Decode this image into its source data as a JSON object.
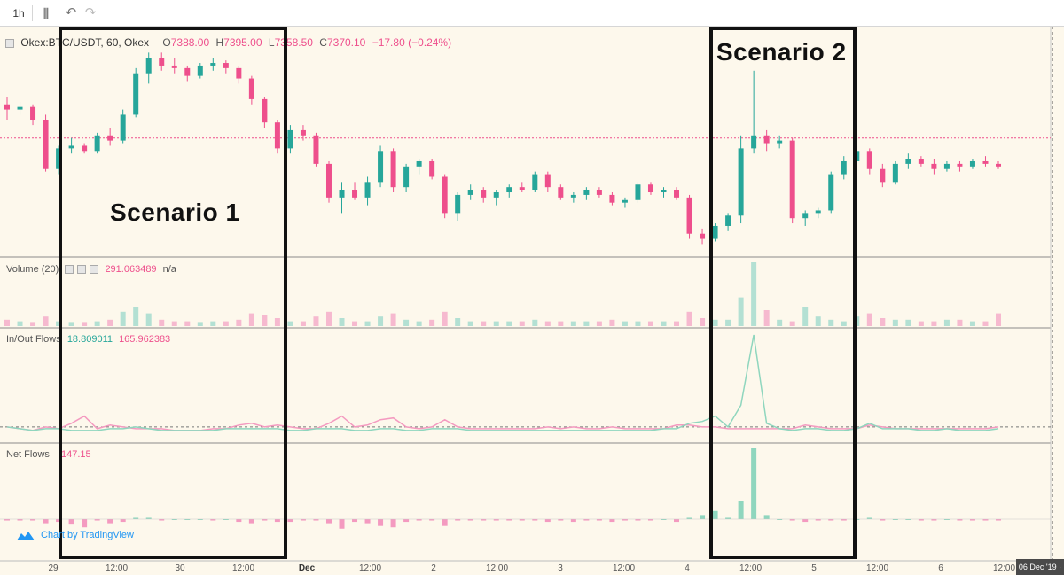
{
  "toolbar": {
    "interval": "1h",
    "candle_icon": "candlestick-icon",
    "undo_icon": "undo-icon",
    "redo_icon": "redo-icon",
    "undo_glyph": "↶",
    "redo_glyph": "↷",
    "candle_glyph": "⫼"
  },
  "header": {
    "symbol": "Okex:BTC/USDT, 60, Okex",
    "open_label": "O",
    "open": "7388.00",
    "high_label": "H",
    "high": "7395.00",
    "low_label": "L",
    "low": "7358.50",
    "close_label": "C",
    "close": "7370.10",
    "change": "−17.80 (−0.24%)"
  },
  "panes": {
    "volume": {
      "label": "Volume (20)",
      "value1": "291.063489",
      "value2": "n/a"
    },
    "flows": {
      "label": "In/Out Flows",
      "value1": "18.809011",
      "value2": "165.962383"
    },
    "net": {
      "label": "Net Flows",
      "value1": "147.15"
    }
  },
  "annotations": {
    "scenario1": "Scenario 1",
    "scenario2": "Scenario 2"
  },
  "watermark": "Chart by TradingView",
  "date_badge": "06 Dec '19 ·",
  "colors": {
    "up": "#26a69a",
    "down": "#ee4f8c",
    "background": "#fdf8ec",
    "up_volume": "#b3e0d3",
    "down_volume": "#f6b9cf"
  },
  "chart_data": {
    "type": "candlestick",
    "x_ticks": [
      "29",
      "12:00",
      "30",
      "12:00",
      "Dec",
      "12:00",
      "2",
      "12:00",
      "3",
      "12:00",
      "4",
      "12:00",
      "5",
      "12:00",
      "6",
      "12:00"
    ],
    "candles": [
      [
        7420,
        7450,
        7360,
        7400
      ],
      [
        7400,
        7430,
        7380,
        7410
      ],
      [
        7410,
        7420,
        7340,
        7360
      ],
      [
        7360,
        7380,
        7160,
        7170
      ],
      [
        7170,
        7260,
        7150,
        7250
      ],
      [
        7250,
        7290,
        7230,
        7260
      ],
      [
        7260,
        7270,
        7230,
        7240
      ],
      [
        7240,
        7310,
        7230,
        7300
      ],
      [
        7300,
        7330,
        7260,
        7280
      ],
      [
        7280,
        7400,
        7270,
        7380
      ],
      [
        7380,
        7560,
        7370,
        7540
      ],
      [
        7540,
        7620,
        7500,
        7600
      ],
      [
        7600,
        7620,
        7550,
        7570
      ],
      [
        7570,
        7600,
        7540,
        7560
      ],
      [
        7560,
        7570,
        7510,
        7530
      ],
      [
        7530,
        7580,
        7520,
        7570
      ],
      [
        7570,
        7600,
        7550,
        7580
      ],
      [
        7580,
        7590,
        7540,
        7560
      ],
      [
        7560,
        7570,
        7500,
        7520
      ],
      [
        7520,
        7530,
        7420,
        7440
      ],
      [
        7440,
        7450,
        7330,
        7350
      ],
      [
        7350,
        7360,
        7230,
        7250
      ],
      [
        7250,
        7340,
        7230,
        7320
      ],
      [
        7320,
        7340,
        7280,
        7300
      ],
      [
        7300,
        7310,
        7180,
        7190
      ],
      [
        7190,
        7200,
        7040,
        7060
      ],
      [
        7060,
        7120,
        7000,
        7090
      ],
      [
        7090,
        7120,
        7050,
        7060
      ],
      [
        7060,
        7140,
        7030,
        7120
      ],
      [
        7120,
        7260,
        7100,
        7240
      ],
      [
        7240,
        7250,
        7080,
        7100
      ],
      [
        7100,
        7190,
        7080,
        7180
      ],
      [
        7180,
        7210,
        7150,
        7200
      ],
      [
        7200,
        7210,
        7130,
        7140
      ],
      [
        7140,
        7150,
        6980,
        7000
      ],
      [
        7000,
        7080,
        6970,
        7070
      ],
      [
        7070,
        7110,
        7050,
        7090
      ],
      [
        7090,
        7100,
        7040,
        7060
      ],
      [
        7060,
        7090,
        7030,
        7080
      ],
      [
        7080,
        7110,
        7060,
        7100
      ],
      [
        7100,
        7120,
        7080,
        7090
      ],
      [
        7090,
        7160,
        7080,
        7150
      ],
      [
        7150,
        7160,
        7080,
        7100
      ],
      [
        7100,
        7110,
        7050,
        7060
      ],
      [
        7060,
        7080,
        7040,
        7070
      ],
      [
        7070,
        7100,
        7050,
        7090
      ],
      [
        7090,
        7100,
        7060,
        7070
      ],
      [
        7070,
        7080,
        7030,
        7040
      ],
      [
        7040,
        7060,
        7020,
        7050
      ],
      [
        7050,
        7120,
        7040,
        7110
      ],
      [
        7110,
        7120,
        7070,
        7080
      ],
      [
        7080,
        7100,
        7060,
        7090
      ],
      [
        7090,
        7100,
        7050,
        7060
      ],
      [
        7060,
        7070,
        6900,
        6920
      ],
      [
        6920,
        6940,
        6880,
        6900
      ],
      [
        6900,
        6960,
        6890,
        6950
      ],
      [
        6950,
        7000,
        6930,
        6990
      ],
      [
        6990,
        7300,
        6960,
        7250
      ],
      [
        7250,
        7550,
        7230,
        7300
      ],
      [
        7300,
        7320,
        7240,
        7270
      ],
      [
        7270,
        7300,
        7250,
        7280
      ],
      [
        7280,
        7290,
        6960,
        6980
      ],
      [
        6980,
        7010,
        6950,
        7000
      ],
      [
        7000,
        7020,
        6980,
        7010
      ],
      [
        7010,
        7160,
        7000,
        7150
      ],
      [
        7150,
        7220,
        7130,
        7200
      ],
      [
        7200,
        7260,
        7170,
        7240
      ],
      [
        7240,
        7250,
        7150,
        7170
      ],
      [
        7170,
        7190,
        7100,
        7120
      ],
      [
        7120,
        7200,
        7110,
        7190
      ],
      [
        7190,
        7230,
        7170,
        7210
      ],
      [
        7210,
        7220,
        7180,
        7190
      ],
      [
        7190,
        7210,
        7150,
        7170
      ],
      [
        7170,
        7200,
        7160,
        7190
      ],
      [
        7190,
        7200,
        7160,
        7180
      ],
      [
        7180,
        7210,
        7170,
        7200
      ],
      [
        7200,
        7220,
        7180,
        7190
      ],
      [
        7190,
        7200,
        7170,
        7180
      ]
    ],
    "volume": [
      4,
      3,
      2,
      6,
      3,
      2,
      2,
      3,
      4,
      9,
      12,
      8,
      4,
      3,
      3,
      2,
      3,
      3,
      4,
      8,
      7,
      5,
      3,
      3,
      6,
      9,
      5,
      3,
      3,
      6,
      8,
      4,
      3,
      4,
      9,
      5,
      3,
      3,
      3,
      3,
      3,
      4,
      3,
      3,
      3,
      3,
      3,
      4,
      3,
      3,
      3,
      3,
      3,
      9,
      5,
      4,
      4,
      18,
      40,
      10,
      4,
      3,
      12,
      6,
      4,
      3,
      6,
      8,
      5,
      4,
      4,
      3,
      3,
      4,
      4,
      3,
      3,
      8
    ],
    "inflow": [
      4,
      3,
      2,
      3,
      3,
      2,
      2,
      2,
      3,
      3,
      4,
      3,
      2,
      2,
      2,
      2,
      2,
      3,
      3,
      3,
      3,
      3,
      2,
      2,
      3,
      3,
      3,
      2,
      2,
      3,
      3,
      2,
      2,
      3,
      3,
      3,
      2,
      2,
      2,
      2,
      2,
      2,
      2,
      2,
      2,
      2,
      2,
      2,
      2,
      2,
      2,
      3,
      3,
      6,
      7,
      10,
      4,
      16,
      55,
      6,
      3,
      2,
      3,
      3,
      2,
      2,
      3,
      6,
      3,
      3,
      3,
      2,
      2,
      3,
      2,
      2,
      2,
      3
    ],
    "outflow": [
      4,
      3,
      2,
      4,
      3,
      6,
      10,
      3,
      5,
      4,
      3,
      3,
      3,
      2,
      2,
      2,
      3,
      3,
      5,
      6,
      4,
      5,
      4,
      3,
      3,
      6,
      10,
      4,
      5,
      8,
      9,
      4,
      3,
      4,
      8,
      4,
      3,
      3,
      3,
      3,
      3,
      3,
      4,
      3,
      4,
      3,
      3,
      4,
      3,
      3,
      3,
      3,
      5,
      5,
      4,
      4,
      3,
      3,
      3,
      3,
      3,
      3,
      5,
      4,
      3,
      3,
      3,
      5,
      4,
      3,
      3,
      3,
      3,
      3,
      3,
      3,
      3,
      4
    ],
    "net_flow": [
      -1,
      -1,
      -1,
      -3,
      -2,
      -4,
      -6,
      -1,
      -3,
      -2,
      1,
      1,
      -1,
      0,
      0,
      0,
      -1,
      0,
      -2,
      -3,
      -1,
      -2,
      -2,
      -1,
      -1,
      -3,
      -7,
      -2,
      -3,
      -5,
      -6,
      -2,
      -1,
      -1,
      -5,
      -1,
      -1,
      -1,
      -1,
      -1,
      -1,
      -1,
      -2,
      -1,
      -2,
      -1,
      -1,
      -2,
      -1,
      -1,
      -1,
      0,
      -2,
      1,
      3,
      6,
      1,
      13,
      52,
      3,
      0,
      -1,
      -2,
      -1,
      -1,
      -1,
      0,
      1,
      -1,
      0,
      0,
      -1,
      -1,
      0,
      -1,
      -1,
      -1,
      -1
    ],
    "price_line": 7290,
    "ylim_price": [
      6830,
      7700
    ],
    "grid": true,
    "legend_position": "top-left"
  }
}
